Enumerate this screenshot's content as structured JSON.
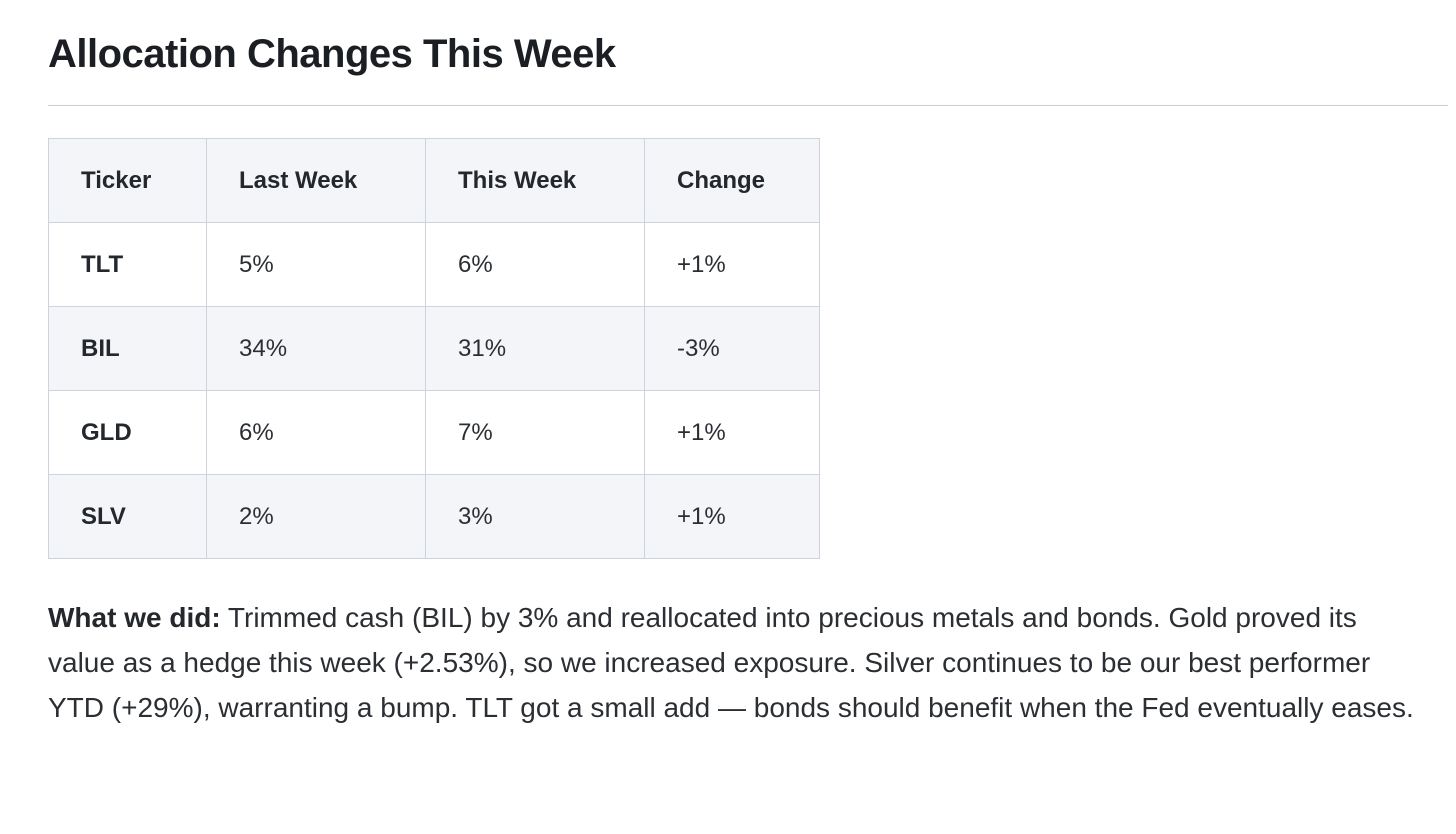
{
  "page": {
    "title": "Allocation Changes This Week"
  },
  "table": {
    "headers": [
      "Ticker",
      "Last Week",
      "This Week",
      "Change"
    ],
    "column_keys": [
      "ticker",
      "last_week",
      "this_week",
      "change"
    ],
    "rows": [
      {
        "ticker": "TLT",
        "last_week": "5%",
        "this_week": "6%",
        "change": "+1%"
      },
      {
        "ticker": "BIL",
        "last_week": "34%",
        "this_week": "31%",
        "change": "-3%"
      },
      {
        "ticker": "GLD",
        "last_week": "6%",
        "this_week": "7%",
        "change": "+1%"
      },
      {
        "ticker": "SLV",
        "last_week": "2%",
        "this_week": "3%",
        "change": "+1%"
      }
    ]
  },
  "summary": {
    "label": "What we did:",
    "body": " Trimmed cash (BIL) by 3% and reallocated into precious metals and bonds. Gold proved its value as a hedge this week (+2.53%), so we increased exposure. Silver continues to be our best performer YTD (+29%), warranting a bump. TLT got a small add — bonds should benefit when the Fed eventually eases."
  },
  "colors": {
    "text": "#2b2f33",
    "heading_text": "#1b1f24",
    "table_border": "#ccd3dc",
    "header_row_bg": "#f4f5f8",
    "alt_row_bg": "#f4f5f8",
    "divider": "#c7ced6",
    "background": "#ffffff"
  }
}
